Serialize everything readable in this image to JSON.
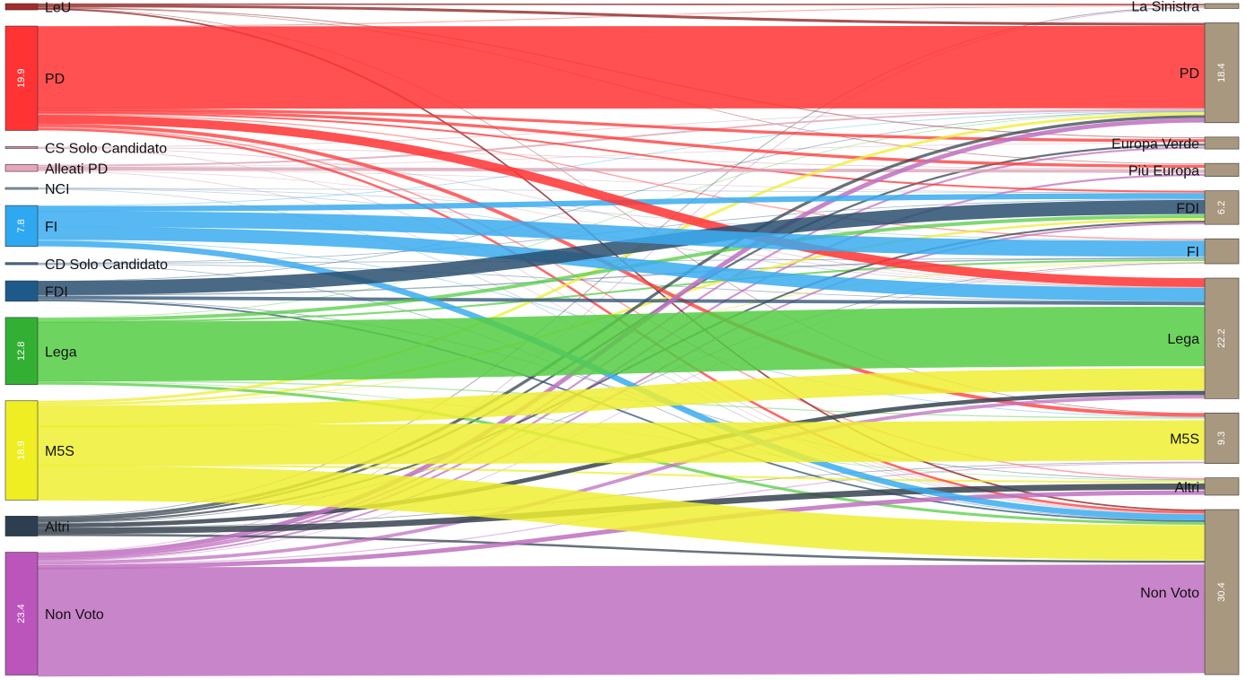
{
  "chart_data": {
    "type": "sankey",
    "title": "",
    "sources": [
      {
        "id": "leu",
        "label": "LeU",
        "value": 1.2,
        "value_label": "",
        "color": "#a52a2a"
      },
      {
        "id": "pd",
        "label": "PD",
        "value": 19.9,
        "value_label": "19.9",
        "color": "#ff3333"
      },
      {
        "id": "cs",
        "label": "CS Solo Candidato",
        "value": 0.3,
        "value_label": "",
        "color": "#d98ba2"
      },
      {
        "id": "alleati",
        "label": "Alleati PD",
        "value": 1.3,
        "value_label": "",
        "color": "#e6a4bd"
      },
      {
        "id": "nci",
        "label": "NCI",
        "value": 0.3,
        "value_label": "",
        "color": "#8aa8c8"
      },
      {
        "id": "fi",
        "label": "FI",
        "value": 7.8,
        "value_label": "7.8",
        "color": "#2ea8f0"
      },
      {
        "id": "cd",
        "label": "CD Solo Candidato",
        "value": 0.4,
        "value_label": "",
        "color": "#3f6c9a"
      },
      {
        "id": "fdi",
        "label": "FDI",
        "value": 3.9,
        "value_label": "",
        "color": "#1d5a8a"
      },
      {
        "id": "lega",
        "label": "Lega",
        "value": 12.8,
        "value_label": "12.8",
        "color": "#33b033"
      },
      {
        "id": "m5s",
        "label": "M5S",
        "value": 18.9,
        "value_label": "18.9",
        "color": "#eeee22"
      },
      {
        "id": "altri",
        "label": "Altri",
        "value": 3.8,
        "value_label": "",
        "color": "#2c3e50"
      },
      {
        "id": "nonvoto",
        "label": "Non Voto",
        "value": 23.4,
        "value_label": "23.4",
        "color": "#bb55bb"
      }
    ],
    "targets": [
      {
        "id": "sin",
        "label": "La Sinistra",
        "value": 0.9,
        "value_label": "",
        "color": "#a89880"
      },
      {
        "id": "pd",
        "label": "PD",
        "value": 18.4,
        "value_label": "18.4",
        "color": "#a89880"
      },
      {
        "id": "ev",
        "label": "Europa Verde",
        "value": 2.2,
        "value_label": "",
        "color": "#a89880"
      },
      {
        "id": "pe",
        "label": "Più Europa",
        "value": 2.4,
        "value_label": "",
        "color": "#a89880"
      },
      {
        "id": "fdi",
        "label": "FDI",
        "value": 6.2,
        "value_label": "6.2",
        "color": "#a89880"
      },
      {
        "id": "fi",
        "label": "FI",
        "value": 4.6,
        "value_label": "",
        "color": "#a89880"
      },
      {
        "id": "lega",
        "label": "Lega",
        "value": 22.2,
        "value_label": "22.2",
        "color": "#a89880"
      },
      {
        "id": "m5s",
        "label": "M5S",
        "value": 9.3,
        "value_label": "9.3",
        "color": "#a89880"
      },
      {
        "id": "altri",
        "label": "Altri",
        "value": 3.2,
        "value_label": "",
        "color": "#a89880"
      },
      {
        "id": "nonvoto",
        "label": "Non Voto",
        "value": 30.4,
        "value_label": "30.4",
        "color": "#a89880"
      }
    ],
    "link_colors": {
      "leu": "#8b1a1a",
      "pd": "#ff3333",
      "cs": "#c98a9a",
      "alleati": "#d9a0b4",
      "nci": "#7f9bb8",
      "fi": "#3aabf0",
      "cd": "#2e5f8a",
      "fdi": "#2a4f70",
      "lega": "#55cc44",
      "m5s": "#eeee33",
      "altri": "#36434f",
      "nonvoto": "#c070c0"
    },
    "links": [
      {
        "s": "leu",
        "t": "pd",
        "v": 0.5
      },
      {
        "s": "leu",
        "t": "sin",
        "v": 0.2
      },
      {
        "s": "leu",
        "t": "nonvoto",
        "v": 0.3
      },
      {
        "s": "leu",
        "t": "m5s",
        "v": 0.05
      },
      {
        "s": "leu",
        "t": "ev",
        "v": 0.1
      },
      {
        "s": "leu",
        "t": "pe",
        "v": 0.05
      },
      {
        "s": "pd",
        "t": "pd",
        "v": 14.2
      },
      {
        "s": "pd",
        "t": "lega",
        "v": 1.5
      },
      {
        "s": "pd",
        "t": "m5s",
        "v": 0.6
      },
      {
        "s": "pd",
        "t": "nonvoto",
        "v": 0.4
      },
      {
        "s": "pd",
        "t": "fdi",
        "v": 0.3
      },
      {
        "s": "pd",
        "t": "fi",
        "v": 0.2
      },
      {
        "s": "pd",
        "t": "altri",
        "v": 0.2
      },
      {
        "s": "pd",
        "t": "pe",
        "v": 0.3
      },
      {
        "s": "pd",
        "t": "ev",
        "v": 0.3
      },
      {
        "s": "pd",
        "t": "sin",
        "v": 0.1
      },
      {
        "s": "cs",
        "t": "pd",
        "v": 0.1
      },
      {
        "s": "cs",
        "t": "nonvoto",
        "v": 0.05
      },
      {
        "s": "cs",
        "t": "pe",
        "v": 0.05
      },
      {
        "s": "cs",
        "t": "lega",
        "v": 0.05
      },
      {
        "s": "alleati",
        "t": "pd",
        "v": 0.25
      },
      {
        "s": "alleati",
        "t": "pe",
        "v": 0.3
      },
      {
        "s": "alleati",
        "t": "nonvoto",
        "v": 0.1
      },
      {
        "s": "alleati",
        "t": "fdi",
        "v": 0.05
      },
      {
        "s": "alleati",
        "t": "ev",
        "v": 0.05
      },
      {
        "s": "alleati",
        "t": "lega",
        "v": 0.05
      },
      {
        "s": "nci",
        "t": "fdi",
        "v": 0.05
      },
      {
        "s": "nci",
        "t": "fi",
        "v": 0.05
      },
      {
        "s": "nci",
        "t": "lega",
        "v": 0.05
      },
      {
        "s": "nci",
        "t": "nonvoto",
        "v": 0.05
      },
      {
        "s": "fi",
        "t": "fi",
        "v": 2.5
      },
      {
        "s": "fi",
        "t": "lega",
        "v": 2.2
      },
      {
        "s": "fi",
        "t": "nonvoto",
        "v": 1.0
      },
      {
        "s": "fi",
        "t": "fdi",
        "v": 0.9
      },
      {
        "s": "fi",
        "t": "pd",
        "v": 0.1
      },
      {
        "s": "fi",
        "t": "m5s",
        "v": 0.1
      },
      {
        "s": "cd",
        "t": "lega",
        "v": 0.1
      },
      {
        "s": "cd",
        "t": "fdi",
        "v": 0.1
      },
      {
        "s": "cd",
        "t": "fi",
        "v": 0.05
      },
      {
        "s": "cd",
        "t": "nonvoto",
        "v": 0.05
      },
      {
        "s": "fdi",
        "t": "fdi",
        "v": 2.4
      },
      {
        "s": "fdi",
        "t": "lega",
        "v": 0.6
      },
      {
        "s": "fdi",
        "t": "nonvoto",
        "v": 0.3
      },
      {
        "s": "fdi",
        "t": "fi",
        "v": 0.2
      },
      {
        "s": "fdi",
        "t": "pd",
        "v": 0.1
      },
      {
        "s": "fdi",
        "t": "altri",
        "v": 0.1
      },
      {
        "s": "lega",
        "t": "lega",
        "v": 10.3
      },
      {
        "s": "lega",
        "t": "fdi",
        "v": 0.6
      },
      {
        "s": "lega",
        "t": "nonvoto",
        "v": 0.5
      },
      {
        "s": "lega",
        "t": "fi",
        "v": 0.3
      },
      {
        "s": "lega",
        "t": "m5s",
        "v": 0.2
      },
      {
        "s": "lega",
        "t": "altri",
        "v": 0.1
      },
      {
        "s": "lega",
        "t": "pd",
        "v": 0.1
      },
      {
        "s": "m5s",
        "t": "m5s",
        "v": 7.1
      },
      {
        "s": "m5s",
        "t": "nonvoto",
        "v": 6.5
      },
      {
        "s": "m5s",
        "t": "lega",
        "v": 3.9
      },
      {
        "s": "m5s",
        "t": "pd",
        "v": 0.5
      },
      {
        "s": "m5s",
        "t": "fdi",
        "v": 0.4
      },
      {
        "s": "m5s",
        "t": "altri",
        "v": 0.3
      },
      {
        "s": "m5s",
        "t": "fi",
        "v": 0.2
      },
      {
        "s": "altri",
        "t": "altri",
        "v": 0.9
      },
      {
        "s": "altri",
        "t": "lega",
        "v": 0.7
      },
      {
        "s": "altri",
        "t": "nonvoto",
        "v": 0.4
      },
      {
        "s": "altri",
        "t": "pd",
        "v": 0.5
      },
      {
        "s": "altri",
        "t": "fdi",
        "v": 0.3
      },
      {
        "s": "altri",
        "t": "ev",
        "v": 0.2
      },
      {
        "s": "altri",
        "t": "sin",
        "v": 0.1
      },
      {
        "s": "altri",
        "t": "m5s",
        "v": 0.1
      },
      {
        "s": "altri",
        "t": "fi",
        "v": 0.1
      },
      {
        "s": "nonvoto",
        "t": "nonvoto",
        "v": 20.2
      },
      {
        "s": "nonvoto",
        "t": "pd",
        "v": 0.8
      },
      {
        "s": "nonvoto",
        "t": "altri",
        "v": 0.7
      },
      {
        "s": "nonvoto",
        "t": "lega",
        "v": 0.6
      },
      {
        "s": "nonvoto",
        "t": "m5s",
        "v": 0.2
      },
      {
        "s": "nonvoto",
        "t": "fdi",
        "v": 0.3
      },
      {
        "s": "nonvoto",
        "t": "pe",
        "v": 0.2
      },
      {
        "s": "nonvoto",
        "t": "ev",
        "v": 0.2
      },
      {
        "s": "nonvoto",
        "t": "fi",
        "v": 0.1
      },
      {
        "s": "nonvoto",
        "t": "sin",
        "v": 0.1
      }
    ]
  }
}
